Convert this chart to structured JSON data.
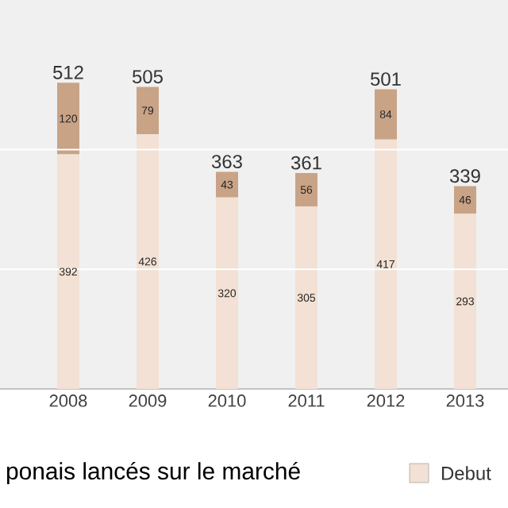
{
  "chart_data": {
    "type": "bar",
    "stacked": true,
    "categories": [
      "2008",
      "2009",
      "2010",
      "2011",
      "2012",
      "2013"
    ],
    "series": [
      {
        "name": "Debut",
        "color": "#f2e1d4",
        "values": [
          392,
          426,
          320,
          305,
          417,
          293
        ]
      },
      {
        "color": "#c9a386",
        "values": [
          120,
          79,
          43,
          56,
          84,
          46
        ]
      }
    ],
    "totals": [
      "512",
      "505",
      "363",
      "361",
      "501",
      "339"
    ],
    "data_labels": true,
    "tick_labels": "x",
    "ref_lines": [
      {
        "axis": "y",
        "value": 200,
        "color": "#ffffff"
      },
      {
        "axis": "y",
        "value": 400,
        "color": "#ffffff"
      }
    ],
    "legend": "bottom right",
    "annotations": [
      "ponais lancés sur le marché"
    ]
  }
}
